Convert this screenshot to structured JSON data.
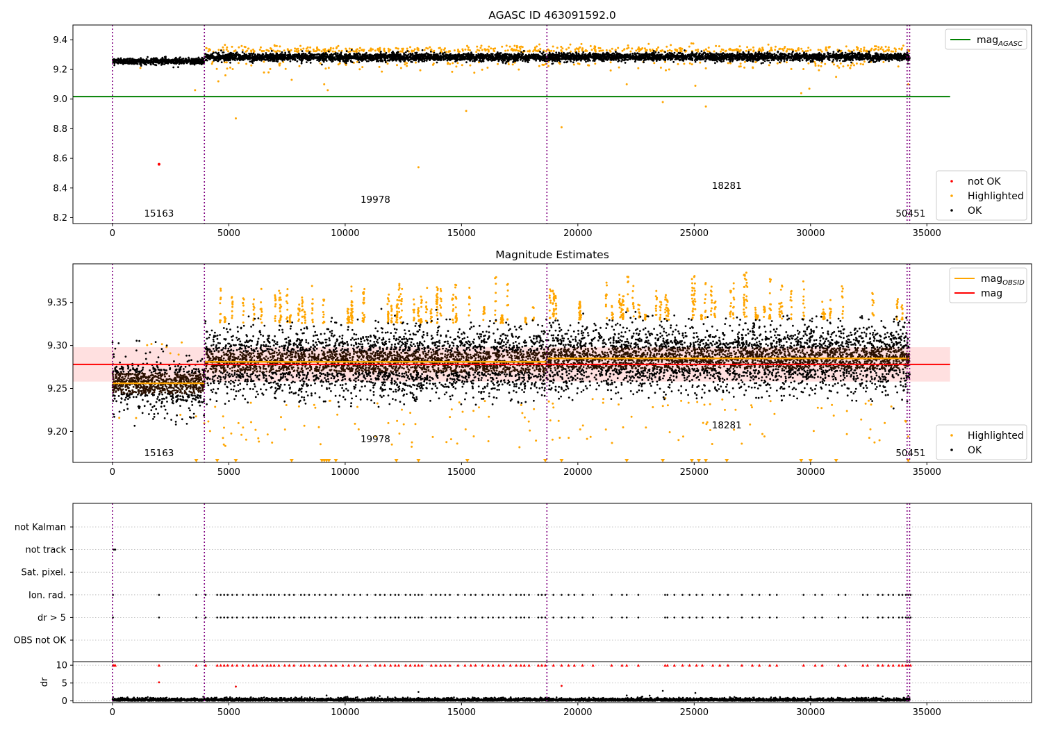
{
  "figure": {
    "suptitle": "AGASC ID 463091592.0",
    "x_ticks": [
      0,
      5000,
      10000,
      15000,
      20000,
      25000,
      30000,
      35000
    ],
    "x_range": [
      -1700,
      39500
    ],
    "obs_boundaries": [
      0,
      3950,
      18670,
      34150,
      34260
    ],
    "obs_labels": [
      {
        "text": "15163",
        "x": 2000
      },
      {
        "text": "19978",
        "x": 11300
      },
      {
        "text": "18281",
        "x": 26400
      },
      {
        "text": "50451",
        "x": 34300
      }
    ]
  },
  "chart_data": [
    {
      "type": "scatter",
      "title": "",
      "ylim": [
        8.16,
        9.5
      ],
      "y_ticks": [
        8.2,
        8.4,
        8.6,
        8.8,
        9.0,
        9.2,
        9.4
      ],
      "tick_decimals": 1,
      "agasc_mag": 9.017,
      "agasc_line_x": [
        -1700,
        36000
      ],
      "ok_band": {
        "segments": [
          {
            "x0": 0,
            "x1": 3950,
            "center": 9.256,
            "spread": 0.01
          },
          {
            "x0": 3950,
            "x1": 18670,
            "center": 9.283,
            "spread": 0.013
          },
          {
            "x0": 18670,
            "x1": 34260,
            "center": 9.285,
            "spread": 0.013
          }
        ]
      },
      "highlighted_outliers": [
        [
          1200,
          9.21
        ],
        [
          3550,
          9.06
        ],
        [
          4550,
          9.12
        ],
        [
          5300,
          8.87
        ],
        [
          7700,
          9.13
        ],
        [
          9100,
          9.1
        ],
        [
          9250,
          9.06
        ],
        [
          15200,
          8.92
        ],
        [
          13150,
          8.54
        ],
        [
          19300,
          8.81
        ],
        [
          22100,
          9.1
        ],
        [
          23650,
          8.98
        ],
        [
          25500,
          8.95
        ],
        [
          25050,
          9.09
        ],
        [
          29600,
          9.04
        ],
        [
          29950,
          9.07
        ],
        [
          31100,
          9.15
        ],
        [
          34200,
          9.1
        ]
      ],
      "not_ok_points": [
        [
          2000,
          8.56
        ]
      ],
      "legends": [
        {
          "position": "upper right",
          "entries": [
            {
              "label": "mag",
              "sub": "AGASC",
              "color": "#008000",
              "kind": "line"
            }
          ]
        },
        {
          "position": "lower right",
          "entries": [
            {
              "label": "not OK",
              "color": "#ff0000",
              "kind": "dot"
            },
            {
              "label": "Highlighted",
              "color": "#ffa500",
              "kind": "dot"
            },
            {
              "label": "OK",
              "color": "#000000",
              "kind": "dot"
            }
          ]
        }
      ]
    },
    {
      "type": "scatter",
      "title": "Magnitude Estimates",
      "ylim": [
        9.164,
        9.395
      ],
      "y_ticks": [
        9.2,
        9.25,
        9.3,
        9.35
      ],
      "tick_decimals": 2,
      "mag_mean": 9.278,
      "mag_band": [
        9.258,
        9.298
      ],
      "mag_line_x": [
        -1700,
        36000
      ],
      "obsid_segments": [
        {
          "x0": 0,
          "x1": 3950,
          "mag": 9.256
        },
        {
          "x0": 3950,
          "x1": 18670,
          "mag": 9.281
        },
        {
          "x0": 18670,
          "x1": 34260,
          "mag": 9.285
        }
      ],
      "triangle_markers_x": [
        3600,
        4500,
        5300,
        7700,
        9000,
        9100,
        9200,
        9300,
        9600,
        12200,
        13150,
        15250,
        18600,
        19300,
        22100,
        23650,
        24900,
        25200,
        25500,
        26400,
        29600,
        30000,
        31100,
        34200
      ],
      "legends": [
        {
          "position": "upper right",
          "entries": [
            {
              "label": "mag",
              "sub": "OBSID",
              "color": "#ffa500",
              "kind": "line"
            },
            {
              "label": "mag",
              "color": "#ff0000",
              "kind": "line"
            }
          ]
        },
        {
          "position": "lower right",
          "entries": [
            {
              "label": "Highlighted",
              "color": "#ffa500",
              "kind": "dot"
            },
            {
              "label": "OK",
              "color": "#000000",
              "kind": "dot"
            }
          ]
        }
      ]
    },
    {
      "type": "scatter",
      "title": "",
      "flag_labels": [
        "not Kalman",
        "not track",
        "Sat. pixel.",
        "Ion. rad.",
        "dr > 5",
        "OBS not OK"
      ],
      "flag_points": {
        "not track": [
          60,
          120
        ],
        "Ion. rad.": [
          20,
          2000,
          3600,
          4000,
          4500,
          4650,
          4800,
          4950,
          5150,
          5350,
          5600,
          5850,
          6050,
          6200,
          6450,
          6650,
          6800,
          6950,
          7150,
          7400,
          7600,
          7800,
          8100,
          8250,
          8450,
          8700,
          8900,
          9150,
          9400,
          9600,
          9900,
          10150,
          10400,
          10650,
          10950,
          11300,
          11500,
          11700,
          11950,
          12150,
          12300,
          12600,
          12800,
          13000,
          13150,
          13300,
          13700,
          13900,
          14100,
          14300,
          14500,
          14850,
          15150,
          15400,
          15600,
          15900,
          16150,
          16350,
          16600,
          16800,
          17100,
          17350,
          17550,
          17700,
          17900,
          18300,
          18450,
          18600,
          18950,
          19300,
          19600,
          19850,
          20200,
          20650,
          21450,
          21900,
          22100,
          22600,
          23750,
          23850,
          24150,
          24500,
          24800,
          25100,
          25350,
          25800,
          26100,
          26450,
          27050,
          27500,
          27800,
          28250,
          28550,
          29700,
          30200,
          30500,
          31200,
          31500,
          32250,
          32450,
          32900,
          33100,
          33350,
          33550,
          33800,
          33950,
          34100,
          34200,
          34300
        ],
        "dr > 5": [
          20,
          2000,
          3600,
          4000,
          4500,
          4650,
          4800,
          4950,
          5150,
          5350,
          5600,
          5850,
          6050,
          6200,
          6450,
          6650,
          6800,
          6950,
          7150,
          7400,
          7600,
          7800,
          8100,
          8250,
          8450,
          8700,
          8900,
          9150,
          9400,
          9600,
          9900,
          10150,
          10400,
          10650,
          10950,
          11300,
          11500,
          11700,
          11950,
          12150,
          12300,
          12600,
          12800,
          13000,
          13150,
          13300,
          13700,
          13900,
          14100,
          14300,
          14500,
          14850,
          15150,
          15400,
          15600,
          15900,
          16150,
          16350,
          16600,
          16800,
          17100,
          17350,
          17550,
          17700,
          17900,
          18300,
          18450,
          18600,
          18950,
          19300,
          19600,
          19850,
          20200,
          20650,
          21450,
          21900,
          22100,
          22600,
          23750,
          23850,
          24150,
          24500,
          24800,
          25100,
          25350,
          25800,
          26100,
          26450,
          27050,
          27500,
          27800,
          28250,
          28550,
          29700,
          30200,
          30500,
          31200,
          31500,
          32250,
          32450,
          32900,
          33100,
          33350,
          33550,
          33800,
          33950,
          34100,
          34200,
          34300
        ]
      }
    },
    {
      "type": "scatter",
      "title": "",
      "ylabel": "dr",
      "y_ticks": [
        0,
        5,
        10
      ],
      "ylim": [
        -0.5,
        11
      ],
      "dr_outliers": [
        [
          2000,
          5.2
        ],
        [
          5300,
          4.0
        ],
        [
          9200,
          1.5
        ],
        [
          13150,
          2.5
        ],
        [
          19300,
          4.2
        ],
        [
          22100,
          1.5
        ],
        [
          23650,
          2.8
        ],
        [
          25050,
          2.2
        ],
        [
          30000,
          1.2
        ],
        [
          34200,
          1.4
        ]
      ],
      "clipped_x": [
        20,
        60,
        120,
        2000,
        3600,
        4000,
        4500,
        4650,
        4800,
        4950,
        5150,
        5350,
        5600,
        5850,
        6050,
        6200,
        6450,
        6650,
        6800,
        6950,
        7150,
        7400,
        7600,
        7800,
        8100,
        8250,
        8450,
        8700,
        8900,
        9150,
        9400,
        9600,
        9900,
        10150,
        10400,
        10650,
        10950,
        11300,
        11500,
        11700,
        11950,
        12150,
        12300,
        12600,
        12800,
        13000,
        13150,
        13300,
        13700,
        13900,
        14100,
        14300,
        14500,
        14850,
        15150,
        15400,
        15600,
        15900,
        16150,
        16350,
        16600,
        16800,
        17100,
        17350,
        17550,
        17700,
        17900,
        18300,
        18450,
        18600,
        18950,
        19300,
        19600,
        19850,
        20200,
        20650,
        21450,
        21900,
        22100,
        22600,
        23750,
        23850,
        24150,
        24500,
        24800,
        25100,
        25350,
        25800,
        26100,
        26450,
        27050,
        27500,
        27800,
        28250,
        28550,
        29700,
        30200,
        30500,
        31200,
        31500,
        32250,
        32450,
        32900,
        33100,
        33350,
        33550,
        33800,
        33950,
        34100,
        34200,
        34300
      ]
    }
  ]
}
